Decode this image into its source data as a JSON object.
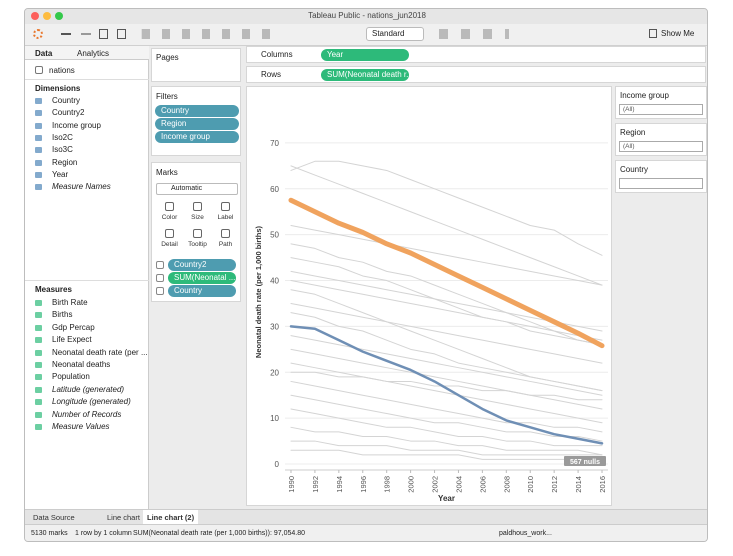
{
  "window": {
    "title": "Tableau Public - nations_jun2018"
  },
  "toolbar": {
    "fit": "Standard",
    "show_me": "Show Me"
  },
  "left_pane": {
    "tabs": [
      "Data",
      "Analytics"
    ],
    "source": "nations",
    "dimensions_header": "Dimensions",
    "dimensions": [
      {
        "label": "Country"
      },
      {
        "label": "Country2"
      },
      {
        "label": "Income group"
      },
      {
        "label": "Iso2C"
      },
      {
        "label": "Iso3C"
      },
      {
        "label": "Region"
      },
      {
        "label": "Year"
      },
      {
        "label": "Measure Names",
        "italic": true
      }
    ],
    "measures_header": "Measures",
    "measures": [
      {
        "label": "Birth Rate"
      },
      {
        "label": "Births"
      },
      {
        "label": "Gdp Percap"
      },
      {
        "label": "Life Expect"
      },
      {
        "label": "Neonatal death rate (per ..."
      },
      {
        "label": "Neonatal deaths"
      },
      {
        "label": "Population"
      },
      {
        "label": "Latitude (generated)",
        "italic": true
      },
      {
        "label": "Longitude (generated)",
        "italic": true
      },
      {
        "label": "Number of Records",
        "italic": true
      },
      {
        "label": "Measure Values",
        "italic": true
      }
    ]
  },
  "shelves": {
    "pages": "Pages",
    "columns_label": "Columns",
    "columns_pill": "Year",
    "rows_label": "Rows",
    "rows_pill": "SUM(Neonatal death r..",
    "filters_header": "Filters",
    "filters": [
      "Country",
      "Region",
      "Income group"
    ],
    "marks_header": "Marks",
    "mark_type": "Automatic",
    "mark_buttons": [
      "Color",
      "Size",
      "Label",
      "Detail",
      "Tooltip",
      "Path"
    ],
    "mark_pills": [
      {
        "label": "Country2",
        "color": "#4e9cb0"
      },
      {
        "label": "SUM(Neonatal ...",
        "color": "#2dba7a"
      },
      {
        "label": "Country",
        "color": "#4e9cb0"
      }
    ]
  },
  "right_pane": {
    "cards": [
      {
        "title": "Income group",
        "value": "(All)"
      },
      {
        "title": "Region",
        "value": "(All)"
      },
      {
        "title": "Country"
      }
    ]
  },
  "tabs": [
    "Data Source",
    "Line chart",
    "Line chart (2)"
  ],
  "status": {
    "marks": "5130 marks",
    "layout": "1 row by 1 column",
    "summary": "SUM(Neonatal death rate (per 1,000 births)): 97,054.80",
    "user": "paldhous_work..."
  },
  "chart_data": {
    "type": "line",
    "x_label": "Year",
    "y_label": "Neonatal death rate (per 1,000 births)",
    "annotation": "567 nulls",
    "x": [
      1990,
      1992,
      1994,
      1996,
      1998,
      2000,
      2002,
      2004,
      2006,
      2008,
      2010,
      2012,
      2014,
      2016
    ],
    "xlim": [
      1989.5,
      2016.5
    ],
    "xticks": [
      1990,
      1992,
      1994,
      1996,
      1998,
      2000,
      2002,
      2004,
      2006,
      2008,
      2010,
      2012,
      2014,
      2016
    ],
    "ylim": [
      0,
      75
    ],
    "yticks": [
      0,
      10,
      20,
      30,
      40,
      50,
      60,
      70
    ],
    "grid": true,
    "series": [
      {
        "color": "#d4d4d4",
        "values": [
          64,
          66,
          66,
          65,
          64,
          62,
          60,
          58,
          56,
          54,
          52,
          51,
          48,
          45.5
        ]
      },
      {
        "color": "#d4d4d4",
        "values": [
          65,
          63,
          61,
          59,
          57,
          55,
          53,
          51,
          49,
          47,
          45,
          43,
          41,
          39
        ]
      },
      {
        "color": "#d4d4d4",
        "values": [
          52,
          51,
          50,
          49,
          48,
          47,
          46,
          45,
          44,
          43,
          42,
          41,
          40,
          39
        ]
      },
      {
        "color": "#d4d4d4",
        "values": [
          48,
          47,
          45,
          44,
          42,
          41,
          39,
          37,
          35,
          33,
          31,
          29,
          27,
          26
        ]
      },
      {
        "color": "#d4d4d4",
        "values": [
          45,
          44,
          43,
          41,
          40,
          38,
          36,
          34,
          32,
          31,
          29,
          28,
          27,
          26
        ]
      },
      {
        "color": "#d4d4d4",
        "values": [
          40,
          39,
          38,
          37,
          36,
          35,
          34,
          33,
          32,
          31,
          30,
          29,
          28,
          27
        ]
      },
      {
        "color": "#d4d4d4",
        "values": [
          38,
          37,
          35,
          33,
          31,
          29,
          27,
          25,
          23,
          21,
          19,
          18,
          17,
          16
        ]
      },
      {
        "color": "#d4d4d4",
        "values": [
          35,
          34,
          33,
          32,
          31,
          30,
          29,
          28,
          27,
          26,
          25,
          24,
          23,
          22
        ]
      },
      {
        "color": "#d4d4d4",
        "values": [
          33,
          32,
          30,
          29,
          27,
          25,
          24,
          22,
          21,
          20,
          19,
          18,
          17,
          16
        ]
      },
      {
        "color": "#d4d4d4",
        "values": [
          28,
          27,
          26,
          25,
          24,
          23,
          22,
          21,
          20,
          19,
          18,
          17,
          16,
          15
        ]
      },
      {
        "color": "#d4d4d4",
        "values": [
          25,
          24,
          23,
          22,
          21,
          20,
          19,
          18,
          17,
          16,
          15,
          14,
          13,
          12
        ]
      },
      {
        "color": "#d4d4d4",
        "values": [
          22,
          21,
          20,
          19,
          18,
          17,
          16,
          15,
          14,
          13,
          12,
          11,
          10,
          9
        ]
      },
      {
        "color": "#d4d4d4",
        "values": [
          18,
          17,
          16,
          15,
          14,
          13,
          12,
          11,
          10,
          9,
          9,
          8,
          8,
          7
        ]
      },
      {
        "color": "#d4d4d4",
        "values": [
          15,
          14,
          13,
          12,
          11,
          10,
          9,
          9,
          8,
          7,
          7,
          6,
          6,
          5
        ]
      },
      {
        "color": "#d4d4d4",
        "values": [
          12,
          11,
          10,
          9,
          8,
          8,
          7,
          6,
          6,
          5,
          5,
          4,
          4,
          4
        ]
      },
      {
        "color": "#d4d4d4",
        "values": [
          8,
          7,
          7,
          6,
          6,
          5,
          5,
          4,
          4,
          3,
          3,
          3,
          3,
          2
        ]
      },
      {
        "color": "#d4d4d4",
        "values": [
          5,
          5,
          4,
          4,
          4,
          3,
          3,
          3,
          2,
          2,
          2,
          2,
          2,
          2
        ]
      },
      {
        "color": "#d4d4d4",
        "values": [
          3,
          3,
          3,
          2,
          2,
          2,
          2,
          2,
          1,
          1,
          1,
          1,
          1,
          1
        ]
      },
      {
        "color": "#d4d4d4",
        "values": [
          20,
          20,
          19,
          19,
          18,
          18,
          17,
          17,
          16,
          16,
          15,
          15,
          14,
          14
        ]
      },
      {
        "color": "#d4d4d4",
        "values": [
          42,
          41,
          40,
          39,
          38,
          37,
          36,
          35,
          34,
          33,
          32,
          31,
          30,
          29
        ]
      },
      {
        "color": "#f0a35e",
        "values": [
          57.5,
          55,
          52.5,
          50.5,
          48,
          46,
          43.5,
          41,
          38.5,
          36,
          33.5,
          31,
          28.5,
          25.8
        ]
      },
      {
        "color": "#6f8fb5",
        "values": [
          30,
          29.5,
          27,
          24.5,
          22.5,
          20.5,
          18,
          15,
          12,
          9.5,
          8,
          6.5,
          5.5,
          4.5
        ]
      }
    ]
  }
}
